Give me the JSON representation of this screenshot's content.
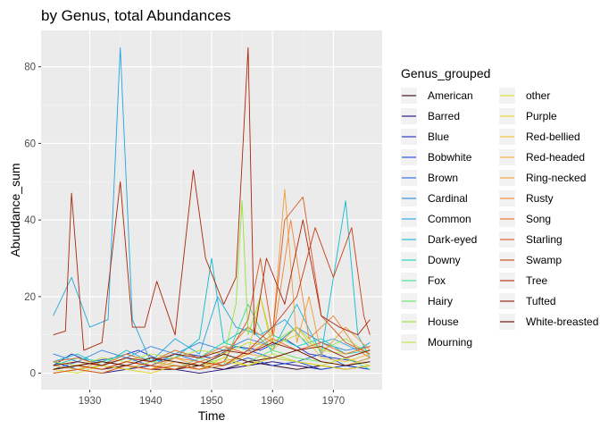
{
  "chart_data": {
    "type": "line",
    "title": "by Genus, total Abundances",
    "xlabel": "Time",
    "ylabel": "Abundance_sum",
    "xlim": [
      1922,
      1978
    ],
    "ylim": [
      -4.3,
      89.5
    ],
    "x_ticks": [
      1930,
      1940,
      1950,
      1960,
      1970
    ],
    "y_ticks": [
      0,
      20,
      40,
      60,
      80
    ],
    "grid": true,
    "legend_title": "Genus_grouped",
    "legend_position": "right",
    "series": [
      {
        "name": "American",
        "color": "#37001a",
        "x": [
          1924,
          1928,
          1932,
          1936,
          1940,
          1944,
          1948,
          1952,
          1956,
          1960,
          1964,
          1968,
          1972,
          1976
        ],
        "values": [
          1,
          2,
          1,
          2,
          1,
          1,
          2,
          1,
          3,
          2,
          1,
          2,
          1,
          2
        ]
      },
      {
        "name": "Barred",
        "color": "#1d0b7a",
        "x": [
          1924,
          1928,
          1932,
          1936,
          1940,
          1944,
          1948,
          1952,
          1956,
          1960,
          1964,
          1968,
          1972,
          1976
        ],
        "values": [
          0,
          1,
          0,
          1,
          2,
          1,
          0,
          1,
          2,
          3,
          2,
          1,
          2,
          1
        ]
      },
      {
        "name": "Blue",
        "color": "#1e27c0",
        "x": [
          1924,
          1927,
          1930,
          1934,
          1938,
          1942,
          1946,
          1950,
          1954,
          1958,
          1962,
          1966,
          1970,
          1974,
          1976
        ],
        "values": [
          2,
          5,
          3,
          4,
          6,
          3,
          5,
          4,
          7,
          6,
          9,
          5,
          4,
          3,
          4
        ]
      },
      {
        "name": "Bobwhite",
        "color": "#1c49d6",
        "x": [
          1924,
          1928,
          1932,
          1936,
          1940,
          1944,
          1948,
          1952,
          1956,
          1960,
          1964,
          1968,
          1972,
          1976
        ],
        "values": [
          3,
          1,
          2,
          1,
          3,
          2,
          1,
          2,
          4,
          2,
          3,
          1,
          2,
          1
        ]
      },
      {
        "name": "Brown",
        "color": "#2366df",
        "x": [
          1924,
          1928,
          1932,
          1936,
          1940,
          1944,
          1948,
          1952,
          1956,
          1960,
          1964,
          1968,
          1972,
          1976
        ],
        "values": [
          1,
          3,
          2,
          4,
          2,
          5,
          3,
          2,
          6,
          4,
          3,
          5,
          2,
          3
        ]
      },
      {
        "name": "Cardinal",
        "color": "#2f85e0",
        "x": [
          1924,
          1928,
          1932,
          1936,
          1940,
          1944,
          1948,
          1952,
          1956,
          1960,
          1964,
          1968,
          1972,
          1976
        ],
        "values": [
          5,
          3,
          6,
          4,
          7,
          5,
          8,
          6,
          9,
          7,
          12,
          8,
          6,
          7
        ]
      },
      {
        "name": "Common",
        "color": "#1fa6de",
        "x": [
          1924,
          1927,
          1930,
          1933,
          1935,
          1937,
          1940,
          1944,
          1948,
          1951,
          1954,
          1958,
          1962,
          1966,
          1970,
          1974,
          1976
        ],
        "values": [
          15,
          25,
          12,
          14,
          85,
          14,
          3,
          9,
          5,
          20,
          12,
          10,
          14,
          7,
          9,
          6,
          8
        ]
      },
      {
        "name": "Dark-eyed",
        "color": "#11bccf",
        "x": [
          1924,
          1928,
          1932,
          1936,
          1940,
          1944,
          1948,
          1950,
          1952,
          1956,
          1960,
          1964,
          1968,
          1972,
          1974,
          1976
        ],
        "values": [
          3,
          5,
          2,
          6,
          3,
          4,
          9,
          30,
          8,
          12,
          6,
          18,
          5,
          45,
          10,
          4
        ]
      },
      {
        "name": "Downy",
        "color": "#16d1b7",
        "x": [
          1924,
          1928,
          1932,
          1936,
          1940,
          1944,
          1948,
          1952,
          1956,
          1960,
          1964,
          1968,
          1972,
          1976
        ],
        "values": [
          2,
          4,
          3,
          5,
          3,
          6,
          4,
          8,
          6,
          10,
          7,
          9,
          5,
          6
        ]
      },
      {
        "name": "Fox",
        "color": "#3cdf8d",
        "x": [
          1924,
          1928,
          1932,
          1936,
          1940,
          1944,
          1948,
          1952,
          1956,
          1960,
          1964,
          1968,
          1972,
          1976
        ],
        "values": [
          1,
          2,
          1,
          3,
          2,
          1,
          4,
          2,
          18,
          5,
          3,
          2,
          4,
          1
        ]
      },
      {
        "name": "Hairy",
        "color": "#5fe460",
        "x": [
          1924,
          1928,
          1932,
          1936,
          1940,
          1944,
          1948,
          1952,
          1956,
          1960,
          1964,
          1968,
          1972,
          1976
        ],
        "values": [
          2,
          1,
          3,
          2,
          4,
          3,
          2,
          5,
          3,
          6,
          4,
          3,
          2,
          3
        ]
      },
      {
        "name": "House",
        "color": "#94e43a",
        "x": [
          1924,
          1928,
          1932,
          1936,
          1940,
          1944,
          1948,
          1952,
          1954,
          1955,
          1956,
          1958,
          1960,
          1964,
          1968,
          1972,
          1976
        ],
        "values": [
          0,
          1,
          0,
          2,
          1,
          3,
          2,
          4,
          18,
          45,
          10,
          20,
          8,
          12,
          6,
          9,
          5
        ]
      },
      {
        "name": "Mourning",
        "color": "#bde43a",
        "x": [
          1924,
          1928,
          1932,
          1936,
          1940,
          1944,
          1948,
          1952,
          1956,
          1960,
          1964,
          1968,
          1972,
          1976
        ],
        "values": [
          3,
          2,
          4,
          3,
          5,
          4,
          6,
          5,
          8,
          7,
          10,
          6,
          5,
          7
        ]
      },
      {
        "name": "other",
        "color": "#d5e02b",
        "x": [
          1924,
          1928,
          1932,
          1936,
          1940,
          1944,
          1948,
          1952,
          1956,
          1960,
          1964,
          1968,
          1972,
          1976
        ],
        "values": [
          1,
          0,
          2,
          1,
          3,
          2,
          1,
          4,
          2,
          5,
          3,
          2,
          4,
          2
        ]
      },
      {
        "name": "Purple",
        "color": "#e7d423",
        "x": [
          1924,
          1928,
          1932,
          1936,
          1940,
          1944,
          1948,
          1952,
          1956,
          1960,
          1964,
          1968,
          1972,
          1976
        ],
        "values": [
          0,
          1,
          2,
          1,
          0,
          2,
          1,
          3,
          2,
          4,
          3,
          2,
          1,
          2
        ]
      },
      {
        "name": "Red-bellied",
        "color": "#eec12f",
        "x": [
          1924,
          1928,
          1932,
          1936,
          1940,
          1944,
          1948,
          1952,
          1956,
          1958,
          1960,
          1964,
          1968,
          1972,
          1976
        ],
        "values": [
          1,
          2,
          1,
          3,
          2,
          1,
          3,
          2,
          5,
          20,
          6,
          12,
          4,
          3,
          5
        ]
      },
      {
        "name": "Red-headed",
        "color": "#f0ad3c",
        "x": [
          1924,
          1928,
          1932,
          1936,
          1940,
          1944,
          1948,
          1952,
          1956,
          1960,
          1964,
          1968,
          1972,
          1976
        ],
        "values": [
          2,
          1,
          3,
          2,
          1,
          4,
          2,
          3,
          5,
          4,
          6,
          3,
          2,
          4
        ]
      },
      {
        "name": "Ring-necked",
        "color": "#f29a37",
        "x": [
          1924,
          1928,
          1932,
          1936,
          1940,
          1944,
          1948,
          1952,
          1956,
          1960,
          1962,
          1964,
          1966,
          1968,
          1972,
          1976
        ],
        "values": [
          0,
          1,
          0,
          2,
          1,
          3,
          1,
          2,
          6,
          10,
          48,
          8,
          20,
          5,
          12,
          6
        ]
      },
      {
        "name": "Rusty",
        "color": "#f08430",
        "x": [
          1924,
          1928,
          1932,
          1936,
          1940,
          1944,
          1948,
          1952,
          1956,
          1960,
          1963,
          1966,
          1970,
          1974,
          1976
        ],
        "values": [
          1,
          2,
          1,
          3,
          2,
          4,
          3,
          5,
          12,
          8,
          40,
          9,
          15,
          6,
          4
        ]
      },
      {
        "name": "Song",
        "color": "#e96d25",
        "x": [
          1924,
          1928,
          1932,
          1936,
          1940,
          1944,
          1948,
          1952,
          1956,
          1960,
          1964,
          1968,
          1972,
          1976
        ],
        "values": [
          3,
          4,
          2,
          5,
          3,
          6,
          4,
          7,
          5,
          9,
          6,
          8,
          5,
          7
        ]
      },
      {
        "name": "Starling",
        "color": "#dc5520",
        "x": [
          1924,
          1928,
          1932,
          1936,
          1940,
          1944,
          1948,
          1952,
          1956,
          1958,
          1960,
          1962,
          1965,
          1968,
          1972,
          1976
        ],
        "values": [
          0,
          1,
          0,
          2,
          1,
          2,
          1,
          3,
          14,
          30,
          10,
          40,
          46,
          15,
          8,
          5
        ]
      },
      {
        "name": "Swamp",
        "color": "#c83c12",
        "x": [
          1924,
          1928,
          1932,
          1936,
          1940,
          1944,
          1948,
          1952,
          1956,
          1960,
          1964,
          1967,
          1970,
          1973,
          1975,
          1976
        ],
        "values": [
          1,
          2,
          1,
          3,
          2,
          1,
          3,
          2,
          6,
          12,
          20,
          38,
          25,
          38,
          15,
          10
        ]
      },
      {
        "name": "Tree",
        "color": "#ac2509",
        "x": [
          1924,
          1926,
          1927,
          1929,
          1932,
          1935,
          1937,
          1939,
          1941,
          1944,
          1947,
          1949,
          1952,
          1954,
          1956,
          1957,
          1959,
          1962,
          1965,
          1968,
          1971,
          1974,
          1976
        ],
        "values": [
          10,
          11,
          47,
          6,
          8,
          50,
          12,
          12,
          24,
          10,
          53,
          30,
          18,
          25,
          85,
          10,
          30,
          18,
          40,
          15,
          12,
          10,
          14
        ]
      },
      {
        "name": "Tufted",
        "color": "#8a1402",
        "x": [
          1924,
          1928,
          1932,
          1936,
          1940,
          1944,
          1948,
          1952,
          1956,
          1960,
          1964,
          1968,
          1972,
          1976
        ],
        "values": [
          2,
          3,
          2,
          4,
          3,
          5,
          4,
          6,
          5,
          8,
          6,
          7,
          4,
          6
        ]
      },
      {
        "name": "White-breasted",
        "color": "#5e0800",
        "x": [
          1924,
          1928,
          1932,
          1936,
          1940,
          1944,
          1948,
          1952,
          1956,
          1960,
          1964,
          1968,
          1972,
          1976
        ],
        "values": [
          1,
          2,
          3,
          2,
          4,
          3,
          2,
          5,
          3,
          4,
          6,
          3,
          2,
          3
        ]
      }
    ]
  }
}
